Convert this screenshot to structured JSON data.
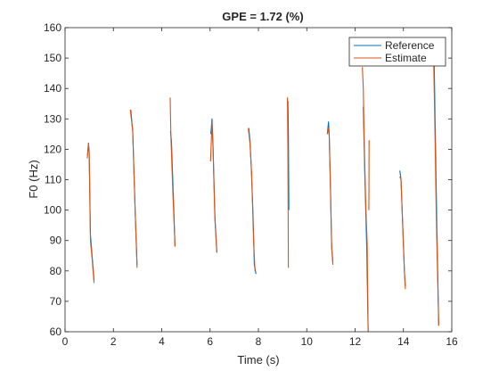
{
  "chart_data": {
    "type": "line",
    "title": "GPE = 1.72 (%)",
    "xlabel": "Time (s)",
    "ylabel": "F0 (Hz)",
    "xlim": [
      0,
      16
    ],
    "ylim": [
      60,
      160
    ],
    "xticks": [
      0,
      2,
      4,
      6,
      8,
      10,
      12,
      14,
      16
    ],
    "yticks": [
      60,
      70,
      80,
      90,
      100,
      110,
      120,
      130,
      140,
      150,
      160
    ],
    "xtick_labels": [
      "0",
      "2",
      "4",
      "6",
      "8",
      "10",
      "12",
      "14",
      "16"
    ],
    "ytick_labels": [
      "60",
      "70",
      "80",
      "90",
      "100",
      "110",
      "120",
      "130",
      "140",
      "150",
      "160"
    ],
    "grid": false,
    "legend_position": "top-right",
    "series": [
      {
        "name": "Reference",
        "color": "#0072BD",
        "segments": [
          [
            [
              0.93,
              118
            ],
            [
              0.97,
              122
            ],
            [
              1.0,
              119
            ],
            [
              1.05,
              92
            ],
            [
              1.12,
              85
            ],
            [
              1.2,
              77
            ]
          ],
          [
            [
              2.72,
              133
            ],
            [
              2.8,
              126
            ],
            [
              2.9,
              100
            ],
            [
              2.98,
              82
            ]
          ],
          [
            [
              4.36,
              126
            ],
            [
              4.4,
              123
            ],
            [
              4.48,
              105
            ],
            [
              4.55,
              88
            ]
          ],
          [
            [
              6.03,
              125
            ],
            [
              6.08,
              130
            ],
            [
              6.12,
              122
            ],
            [
              6.2,
              98
            ],
            [
              6.28,
              86
            ]
          ],
          [
            [
              7.6,
              127
            ],
            [
              7.65,
              123
            ],
            [
              7.7,
              115
            ],
            [
              7.78,
              98
            ],
            [
              7.83,
              82
            ],
            [
              7.9,
              79
            ]
          ],
          [
            [
              9.22,
              136
            ],
            [
              9.24,
              126
            ],
            [
              9.26,
              100
            ]
          ],
          [
            [
              10.85,
              125
            ],
            [
              10.9,
              129
            ],
            [
              10.93,
              125
            ],
            [
              10.98,
              108
            ],
            [
              11.03,
              88
            ],
            [
              11.08,
              83
            ]
          ],
          [
            [
              12.34,
              134
            ],
            [
              12.4,
              112
            ],
            [
              12.48,
              88
            ],
            [
              12.54,
              60
            ]
          ],
          [
            [
              13.85,
              113
            ],
            [
              13.9,
              110
            ],
            [
              13.97,
              95
            ],
            [
              14.04,
              80
            ],
            [
              14.08,
              75
            ]
          ],
          [
            [
              15.27,
              150
            ],
            [
              15.32,
              125
            ],
            [
              15.38,
              96
            ],
            [
              15.43,
              75
            ],
            [
              15.46,
              62
            ]
          ]
        ]
      },
      {
        "name": "Estimate",
        "color": "#D95319",
        "segments": [
          [
            [
              0.92,
              117
            ],
            [
              0.97,
              122
            ],
            [
              1.0,
              118
            ],
            [
              1.05,
              90
            ],
            [
              1.12,
              84
            ],
            [
              1.2,
              76
            ]
          ],
          [
            [
              2.7,
              133
            ],
            [
              2.8,
              126
            ],
            [
              2.9,
              100
            ],
            [
              2.98,
              81
            ]
          ],
          [
            [
              4.35,
              137
            ],
            [
              4.38,
              124
            ],
            [
              4.45,
              108
            ],
            [
              4.55,
              88
            ]
          ],
          [
            [
              6.02,
              116
            ],
            [
              6.08,
              129
            ],
            [
              6.12,
              121
            ],
            [
              6.2,
              97
            ],
            [
              6.28,
              86
            ]
          ],
          [
            [
              7.58,
              127
            ],
            [
              7.65,
              122
            ],
            [
              7.72,
              112
            ],
            [
              7.8,
              90
            ],
            [
              7.86,
              80
            ]
          ],
          [
            [
              9.2,
              137
            ],
            [
              9.22,
              120
            ],
            [
              9.24,
              81
            ]
          ],
          [
            [
              10.85,
              125
            ],
            [
              10.9,
              127
            ],
            [
              10.93,
              124
            ],
            [
              10.98,
              108
            ],
            [
              11.03,
              88
            ],
            [
              11.08,
              82
            ]
          ],
          [
            [
              12.3,
              147
            ],
            [
              12.34,
              140
            ],
            [
              12.38,
              122
            ],
            [
              12.44,
              102
            ],
            [
              12.5,
              89
            ],
            [
              12.54,
              60
            ]
          ],
          [
            [
              12.58,
              123
            ],
            [
              12.57,
              100
            ]
          ],
          [
            [
              13.85,
              111
            ],
            [
              13.9,
              110
            ],
            [
              13.97,
              95
            ],
            [
              14.04,
              80
            ],
            [
              14.08,
              74
            ]
          ],
          [
            [
              15.25,
              150
            ],
            [
              15.3,
              128
            ],
            [
              15.36,
              98
            ],
            [
              15.42,
              76
            ],
            [
              15.46,
              62
            ]
          ]
        ]
      }
    ]
  }
}
